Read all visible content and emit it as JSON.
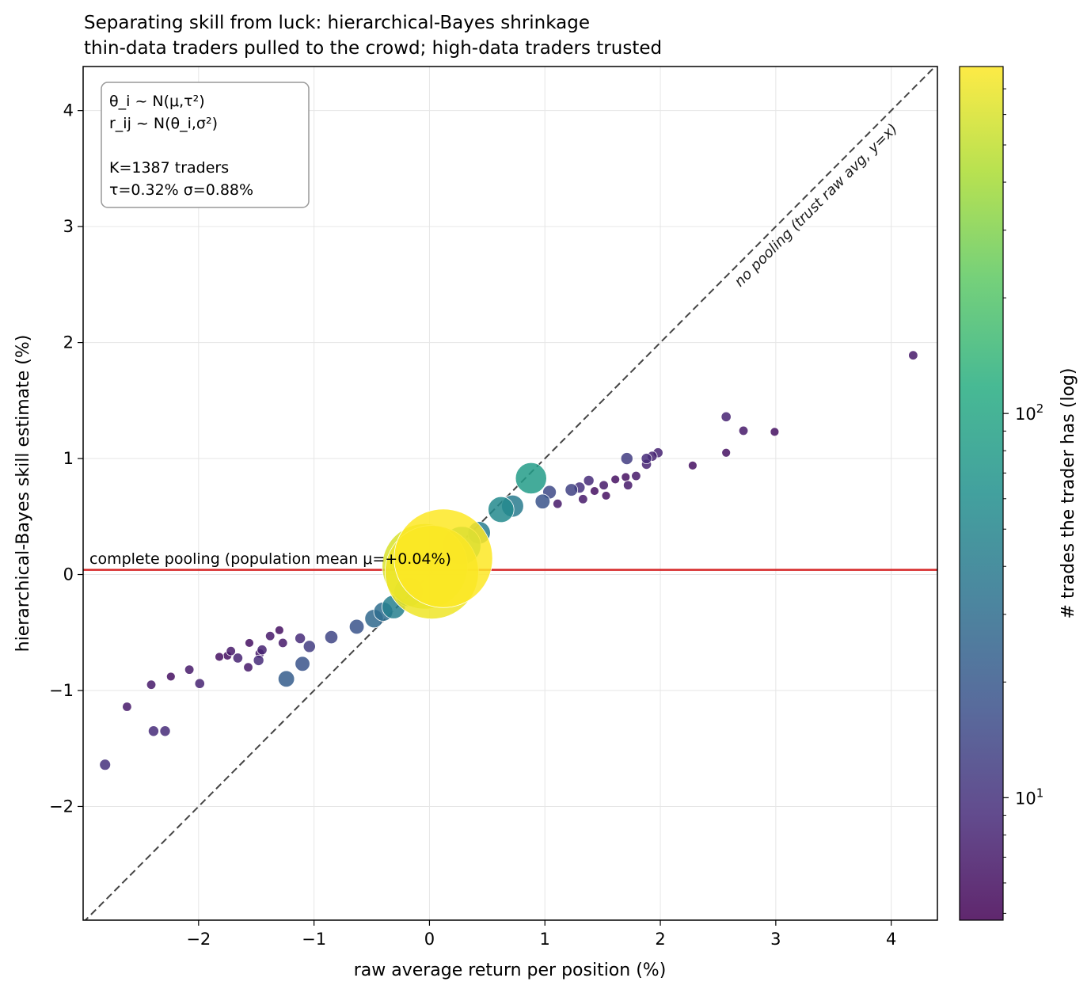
{
  "chart_data": {
    "type": "scatter",
    "title": "Separating skill from luck: hierarchical-Bayes shrinkage",
    "subtitle": "thin-data traders pulled to the crowd; high-data traders trusted",
    "xlabel": "raw average return per position (%)",
    "ylabel": "hierarchical-Bayes skill estimate (%)",
    "xlim": [
      -3.0,
      4.4
    ],
    "ylim": [
      -2.98,
      4.38
    ],
    "xticks": [
      -2,
      -1,
      0,
      1,
      2,
      3,
      4
    ],
    "yticks": [
      -2,
      -1,
      0,
      1,
      2,
      3,
      4
    ],
    "grid": true,
    "pooling_line": {
      "y": 0.04,
      "label": "complete pooling (population mean μ=+0.04%)",
      "color": "#d62728"
    },
    "identity_line": {
      "label": "no pooling (trust raw avg, y=x)",
      "color": "#444444"
    },
    "annotation_box": {
      "lines": [
        "θ_i ~ N(μ,τ²)",
        "r_ij ~ N(θ_i,σ²)",
        "",
        "K=1387 traders",
        "τ=0.32%  σ=0.88%"
      ]
    },
    "colorbar": {
      "label": "# trades the trader has (log)",
      "scale": "log",
      "range": [
        4.8,
        800
      ],
      "ticks": [
        {
          "value": 10,
          "base": "10",
          "exp": "1"
        },
        {
          "value": 100,
          "base": "10",
          "exp": "2"
        }
      ],
      "colormap": [
        "#440154",
        "#472c7a",
        "#3b518b",
        "#2c718e",
        "#21908d",
        "#27ad81",
        "#5cc863",
        "#aadc32",
        "#fde725"
      ]
    },
    "points": [
      {
        "x": 4.19,
        "y": 1.89,
        "n": 7
      },
      {
        "x": 2.99,
        "y": 1.23,
        "n": 6
      },
      {
        "x": 2.72,
        "y": 1.24,
        "n": 7
      },
      {
        "x": 2.57,
        "y": 1.36,
        "n": 8
      },
      {
        "x": 2.57,
        "y": 1.05,
        "n": 6
      },
      {
        "x": 2.28,
        "y": 0.94,
        "n": 6
      },
      {
        "x": 1.98,
        "y": 1.05,
        "n": 8
      },
      {
        "x": 1.93,
        "y": 1.02,
        "n": 8
      },
      {
        "x": 1.71,
        "y": 1.0,
        "n": 12
      },
      {
        "x": 1.88,
        "y": 1.0,
        "n": 9
      },
      {
        "x": 1.79,
        "y": 0.85,
        "n": 7
      },
      {
        "x": 1.88,
        "y": 0.95,
        "n": 8
      },
      {
        "x": 1.7,
        "y": 0.84,
        "n": 6
      },
      {
        "x": 1.72,
        "y": 0.77,
        "n": 7
      },
      {
        "x": 1.61,
        "y": 0.82,
        "n": 6
      },
      {
        "x": 1.51,
        "y": 0.77,
        "n": 7
      },
      {
        "x": 1.38,
        "y": 0.81,
        "n": 9
      },
      {
        "x": 1.53,
        "y": 0.68,
        "n": 6
      },
      {
        "x": 1.43,
        "y": 0.72,
        "n": 6
      },
      {
        "x": 1.3,
        "y": 0.75,
        "n": 10
      },
      {
        "x": 1.33,
        "y": 0.65,
        "n": 7
      },
      {
        "x": 1.23,
        "y": 0.73,
        "n": 13
      },
      {
        "x": 1.11,
        "y": 0.61,
        "n": 7
      },
      {
        "x": 1.04,
        "y": 0.71,
        "n": 15
      },
      {
        "x": 0.88,
        "y": 0.83,
        "n": 80
      },
      {
        "x": 0.98,
        "y": 0.63,
        "n": 18
      },
      {
        "x": 0.72,
        "y": 0.59,
        "n": 40
      },
      {
        "x": 0.62,
        "y": 0.56,
        "n": 55
      },
      {
        "x": 0.43,
        "y": 0.36,
        "n": 42
      },
      {
        "x": 0.28,
        "y": 0.25,
        "n": 120
      },
      {
        "x": 0.12,
        "y": 0.14,
        "n": 800
      },
      {
        "x": 0.02,
        "y": 0.02,
        "n": 720
      },
      {
        "x": -0.04,
        "y": 0.07,
        "n": 600
      },
      {
        "x": -0.18,
        "y": -0.15,
        "n": 70
      },
      {
        "x": -0.31,
        "y": -0.28,
        "n": 45
      },
      {
        "x": -0.4,
        "y": -0.32,
        "n": 30
      },
      {
        "x": -0.48,
        "y": -0.38,
        "n": 28
      },
      {
        "x": -0.63,
        "y": -0.45,
        "n": 18
      },
      {
        "x": -0.85,
        "y": -0.54,
        "n": 14
      },
      {
        "x": -1.04,
        "y": -0.62,
        "n": 12
      },
      {
        "x": -1.1,
        "y": -0.77,
        "n": 18
      },
      {
        "x": -1.24,
        "y": -0.9,
        "n": 22
      },
      {
        "x": -1.12,
        "y": -0.55,
        "n": 9
      },
      {
        "x": -1.27,
        "y": -0.59,
        "n": 7
      },
      {
        "x": -1.45,
        "y": -0.65,
        "n": 8
      },
      {
        "x": -1.48,
        "y": -0.74,
        "n": 9
      },
      {
        "x": -1.57,
        "y": -0.8,
        "n": 7
      },
      {
        "x": -1.47,
        "y": -0.68,
        "n": 7
      },
      {
        "x": -1.66,
        "y": -0.72,
        "n": 8
      },
      {
        "x": -1.75,
        "y": -0.7,
        "n": 6
      },
      {
        "x": -1.72,
        "y": -0.66,
        "n": 7
      },
      {
        "x": -1.82,
        "y": -0.71,
        "n": 6
      },
      {
        "x": -1.56,
        "y": -0.59,
        "n": 6
      },
      {
        "x": -1.38,
        "y": -0.53,
        "n": 7
      },
      {
        "x": -1.3,
        "y": -0.48,
        "n": 6
      },
      {
        "x": -1.99,
        "y": -0.94,
        "n": 8
      },
      {
        "x": -2.08,
        "y": -0.82,
        "n": 7
      },
      {
        "x": -2.24,
        "y": -0.88,
        "n": 6
      },
      {
        "x": -2.41,
        "y": -0.95,
        "n": 7
      },
      {
        "x": -2.62,
        "y": -1.14,
        "n": 7
      },
      {
        "x": -2.39,
        "y": -1.35,
        "n": 9
      },
      {
        "x": -2.29,
        "y": -1.35,
        "n": 9
      },
      {
        "x": -2.81,
        "y": -1.64,
        "n": 10
      }
    ]
  }
}
